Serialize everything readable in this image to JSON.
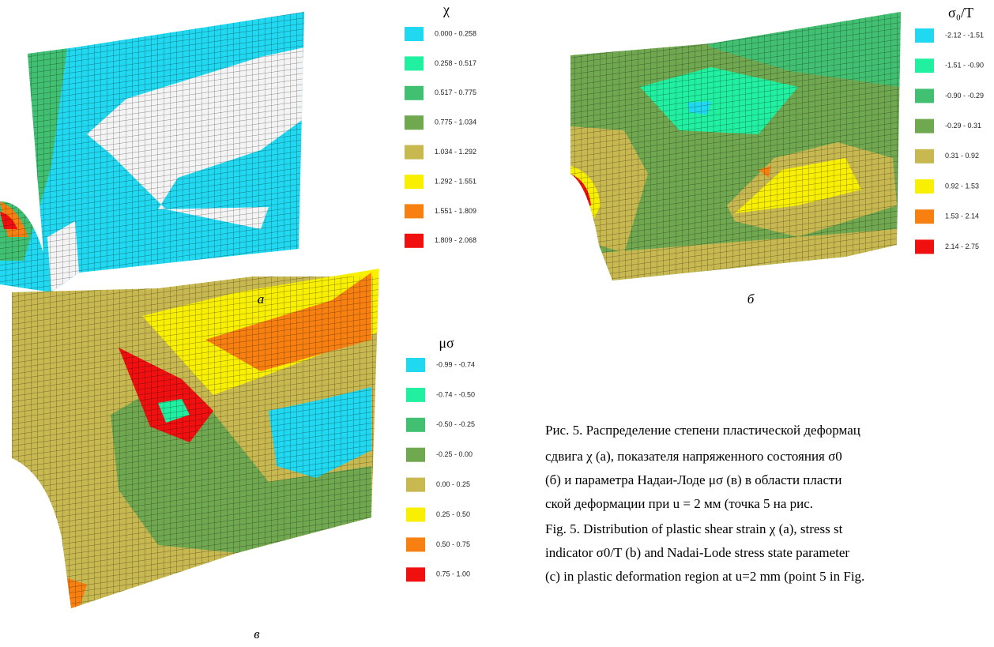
{
  "panels": [
    {
      "title": "χ",
      "label": "а",
      "items": [
        {
          "range": "0.000 - 0.258",
          "color": "#20d8f0"
        },
        {
          "range": "0.258 - 0.517",
          "color": "#20f0a0"
        },
        {
          "range": "0.517 - 0.775",
          "color": "#40c070"
        },
        {
          "range": "0.775 - 1.034",
          "color": "#70a850"
        },
        {
          "range": "1.034 - 1.292",
          "color": "#c8b850"
        },
        {
          "range": "1.292 - 1.551",
          "color": "#f8f000"
        },
        {
          "range": "1.551 - 1.809",
          "color": "#f88010"
        },
        {
          "range": "1.809 - 2.068",
          "color": "#f01010"
        }
      ]
    },
    {
      "title": "σ₀/T",
      "label": "б",
      "items": [
        {
          "range": "-2.12 - -1.51",
          "color": "#20d8f0"
        },
        {
          "range": "-1.51 - -0.90",
          "color": "#20f0a0"
        },
        {
          "range": "-0.90 - -0.29",
          "color": "#40c070"
        },
        {
          "range": "-0.29 - 0.31",
          "color": "#70a850"
        },
        {
          "range": "0.31 - 0.92",
          "color": "#c8b850"
        },
        {
          "range": "0.92 - 1.53",
          "color": "#f8f000"
        },
        {
          "range": "1.53 - 2.14",
          "color": "#f88010"
        },
        {
          "range": "2.14 - 2.75",
          "color": "#f01010"
        }
      ]
    },
    {
      "title": "μσ",
      "label": "в",
      "items": [
        {
          "range": "-0.99 - -0.74",
          "color": "#20d8f0"
        },
        {
          "range": "-0.74 - -0.50",
          "color": "#20f0a0"
        },
        {
          "range": "-0.50 - -0.25",
          "color": "#40c070"
        },
        {
          "range": "-0.25 - 0.00",
          "color": "#70a850"
        },
        {
          "range": "0.00 - 0.25",
          "color": "#c8b850"
        },
        {
          "range": "0.25 - 0.50",
          "color": "#f8f000"
        },
        {
          "range": "0.50 - 0.75",
          "color": "#f88010"
        },
        {
          "range": "0.75 - 1.00",
          "color": "#f01010"
        }
      ]
    }
  ],
  "caption": {
    "lines": [
      "Рис. 5. Распределение степени пластической деформац",
      "сдвига χ (а), показателя напряженного состояния σ0",
      "(б) и параметра Надаи-Лоде μσ (в) в области пласти",
      "ской деформации при u = 2 мм (точка 5 на рис.",
      "Fig. 5. Distribution of plastic shear strain χ (a), stress st",
      "indicator σ0/T (b) and Nadai-Lode stress state parameter",
      "(c) in plastic deformation region at u=2 mm (point 5 in Fig."
    ]
  }
}
